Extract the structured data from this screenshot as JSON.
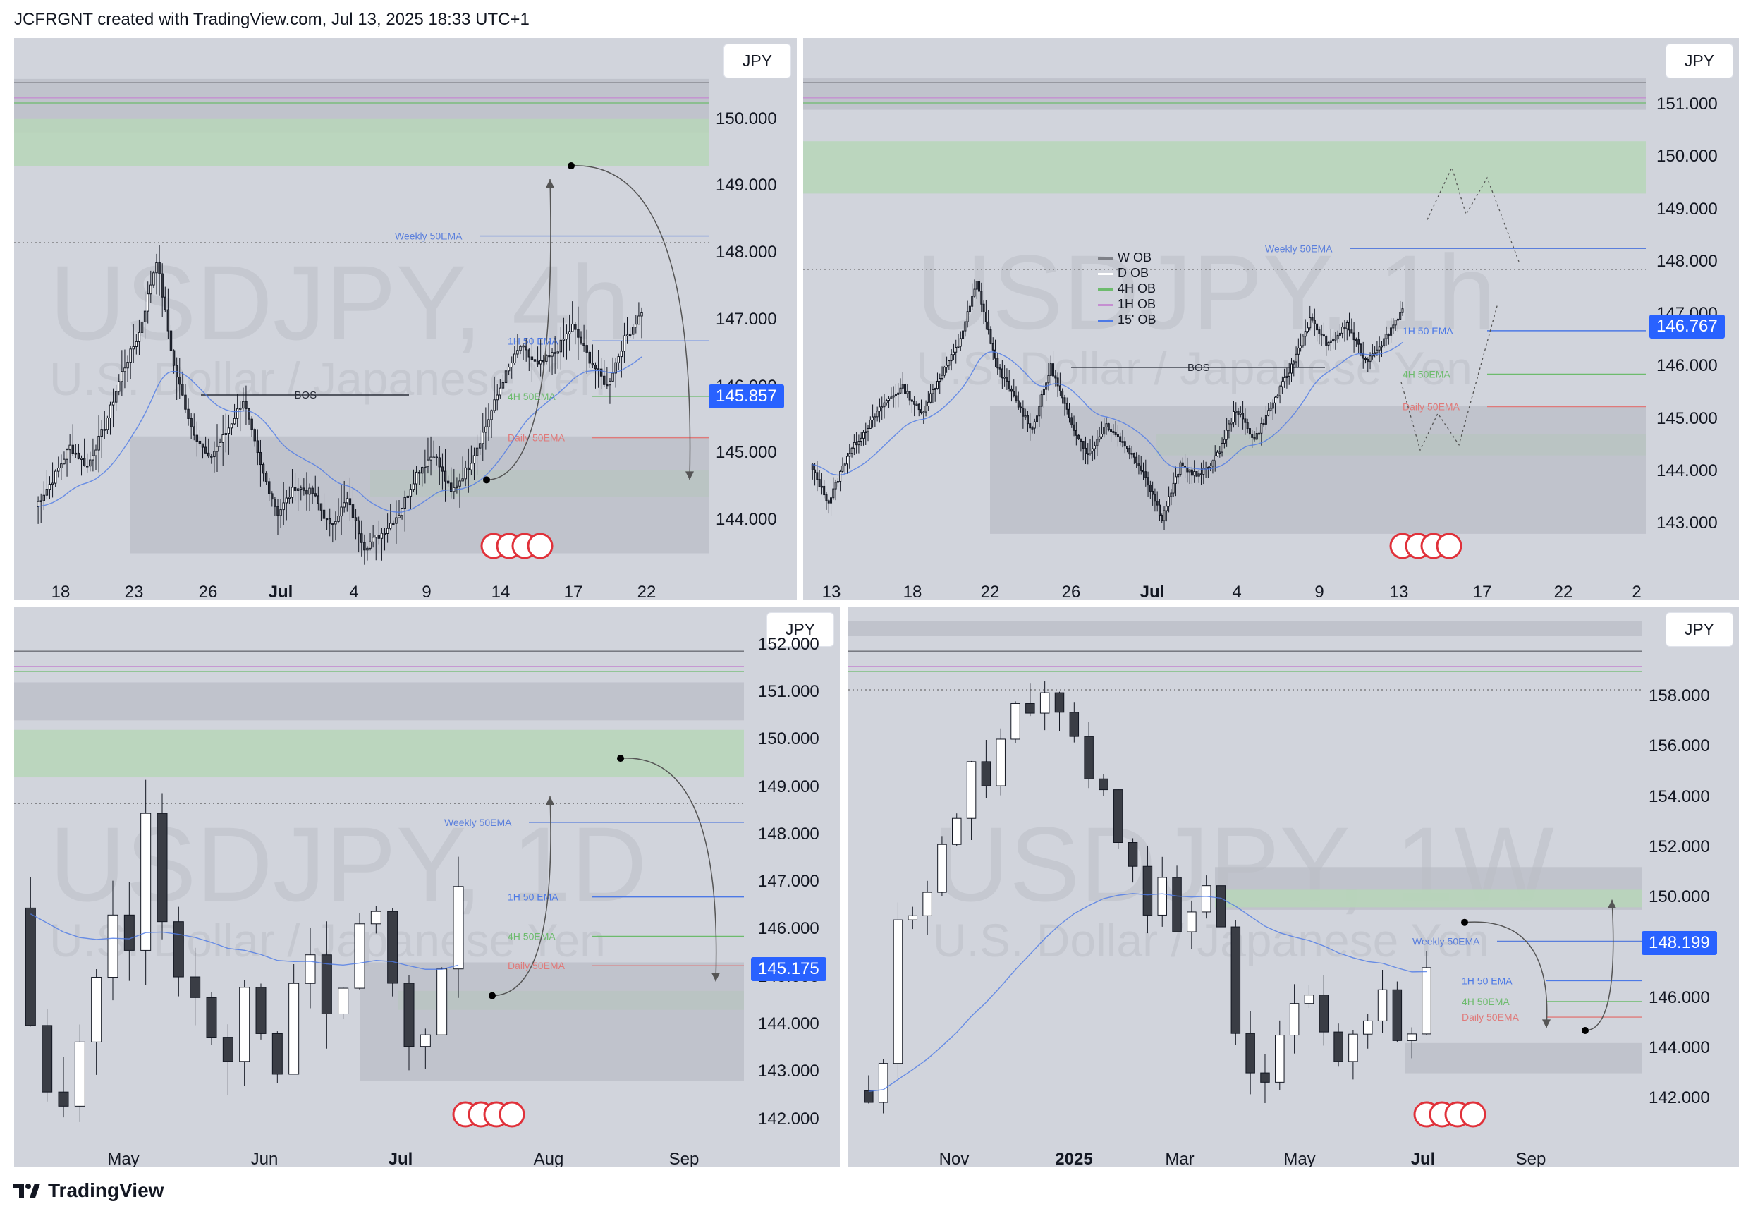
{
  "header": {
    "text": "JCFRGNT created with TradingView.com, Jul 13, 2025 18:33 UTC+1"
  },
  "footer": {
    "brand": "TradingView",
    "logo_icon": "tradingview-logo-icon"
  },
  "colors": {
    "weekly_ema": "#5b7fdc",
    "h1_ema": "#4c79e6",
    "h4_ema": "#6dbb6d",
    "daily_ema": "#e07a7a",
    "ob_green": "#b7d6b9",
    "ob_gray": "#b9bcc4",
    "price_blue": "#2962ff"
  },
  "chart_data": [
    {
      "id": "4h",
      "type": "candlestick",
      "symbol": "USDJPY, 4h",
      "description": "U.S. Dollar / Japanese Yen",
      "currency": "JPY",
      "last_price": "145.857",
      "ylim": [
        143.4,
        151.0
      ],
      "y_ticks": [
        "150.000",
        "149.000",
        "148.000",
        "147.000",
        "146.000",
        "145.000",
        "144.000"
      ],
      "x_ticks": [
        "18",
        "23",
        "26",
        "Jul",
        "4",
        "9",
        "14",
        "17",
        "22"
      ],
      "close_path": [
        144.2,
        144.6,
        145.1,
        144.8,
        145.4,
        146.2,
        146.8,
        147.9,
        146.3,
        145.4,
        144.9,
        145.3,
        145.8,
        144.8,
        144.1,
        144.5,
        144.4,
        143.9,
        144.3,
        143.6,
        143.8,
        144.1,
        144.7,
        145.0,
        144.4,
        144.8,
        145.4,
        146.1,
        146.6,
        146.3,
        146.5,
        146.9,
        146.4,
        146.0,
        146.7,
        147.1
      ],
      "levels": [
        {
          "label": "Weekly 50EMA",
          "value": 148.25
        },
        {
          "label": "1H 50 EMA",
          "value": 146.68
        },
        {
          "label": "4H 50EMA",
          "value": 145.85
        },
        {
          "label": "Daily 50EMA",
          "value": 145.23
        },
        {
          "label": "BOS",
          "value": 145.87
        }
      ]
    },
    {
      "id": "1h",
      "type": "candlestick",
      "symbol": "USDJPY, 1h",
      "description": "U.S. Dollar / Japanese Yen",
      "currency": "JPY",
      "last_price": "146.767",
      "ylim": [
        142.3,
        152.0
      ],
      "y_ticks": [
        "151.000",
        "150.000",
        "149.000",
        "148.000",
        "147.000",
        "146.000",
        "145.000",
        "144.000",
        "143.000"
      ],
      "x_ticks": [
        "13",
        "18",
        "22",
        "26",
        "Jul",
        "4",
        "9",
        "13",
        "17",
        "22",
        "2"
      ],
      "legend": [
        "W OB",
        "D OB",
        "4H OB",
        "1H OB",
        "15' OB"
      ],
      "close_path": [
        144.1,
        143.4,
        144.3,
        144.8,
        145.3,
        145.6,
        145.1,
        145.8,
        146.4,
        147.6,
        146.1,
        145.4,
        144.8,
        146.0,
        145.0,
        144.3,
        144.9,
        144.5,
        144.0,
        143.1,
        144.1,
        143.9,
        144.3,
        145.2,
        144.6,
        145.3,
        146.0,
        146.9,
        146.4,
        146.8,
        146.1,
        146.5,
        147.1
      ],
      "levels": [
        {
          "label": "Weekly 50EMA",
          "value": 148.25
        },
        {
          "label": "1H 50 EMA",
          "value": 146.68
        },
        {
          "label": "4H 50EMA",
          "value": 145.85
        },
        {
          "label": "Daily 50EMA",
          "value": 145.23
        },
        {
          "label": "BOS",
          "value": 145.98
        }
      ]
    },
    {
      "id": "1d",
      "type": "candlestick",
      "symbol": "USDJPY, 1D",
      "description": "U.S. Dollar / Japanese Yen",
      "currency": "JPY",
      "last_price": "145.175",
      "ylim": [
        141.8,
        152.5
      ],
      "y_ticks": [
        "152.000",
        "151.000",
        "150.000",
        "149.000",
        "148.000",
        "147.000",
        "146.000",
        "145.000",
        "144.000",
        "143.000",
        "142.000"
      ],
      "x_ticks": [
        "May",
        "Jun",
        "Jul",
        "Aug",
        "Sep"
      ],
      "close_path": [
        146.5,
        144.0,
        142.6,
        142.3,
        143.6,
        145.0,
        146.3,
        145.5,
        148.4,
        146.2,
        145.0,
        144.5,
        143.7,
        143.2,
        144.8,
        143.8,
        142.9,
        144.9,
        145.4,
        144.2,
        144.7,
        146.1,
        146.4,
        144.9,
        143.5,
        143.8,
        145.2,
        146.9
      ],
      "levels": [
        {
          "label": "Weekly 50EMA",
          "value": 148.25
        },
        {
          "label": "1H 50 EMA",
          "value": 146.68
        },
        {
          "label": "4H 50EMA",
          "value": 145.85
        },
        {
          "label": "Daily 50EMA",
          "value": 145.23
        }
      ]
    },
    {
      "id": "1w",
      "type": "candlestick",
      "symbol": "USDJPY, 1W",
      "description": "U.S. Dollar / Japanese Yen",
      "currency": "JPY",
      "last_price": "148.199",
      "ylim": [
        140.8,
        161.0
      ],
      "y_ticks": [
        "158.000",
        "156.000",
        "154.000",
        "152.000",
        "150.000",
        "148.000",
        "146.000",
        "144.000",
        "142.000"
      ],
      "x_ticks": [
        "Nov",
        "2025",
        "Mar",
        "May",
        "Jul",
        "Sep"
      ],
      "close_path": [
        142.3,
        141.9,
        143.3,
        149.0,
        149.4,
        150.3,
        152.0,
        153.2,
        155.4,
        154.3,
        156.3,
        157.8,
        157.3,
        158.0,
        157.3,
        156.5,
        154.8,
        154.3,
        152.3,
        151.2,
        149.2,
        150.7,
        148.6,
        149.5,
        150.4,
        148.8,
        144.7,
        143.1,
        142.5,
        144.4,
        145.7,
        146.2,
        144.5,
        143.4,
        144.5,
        145.0,
        146.3,
        144.2,
        144.5,
        147.2
      ],
      "levels": [
        {
          "label": "Weekly 50EMA",
          "value": 148.25
        },
        {
          "label": "1H 50 EMA",
          "value": 146.68
        },
        {
          "label": "4H 50EMA",
          "value": 145.85
        },
        {
          "label": "Daily 50EMA",
          "value": 145.23
        }
      ]
    }
  ]
}
